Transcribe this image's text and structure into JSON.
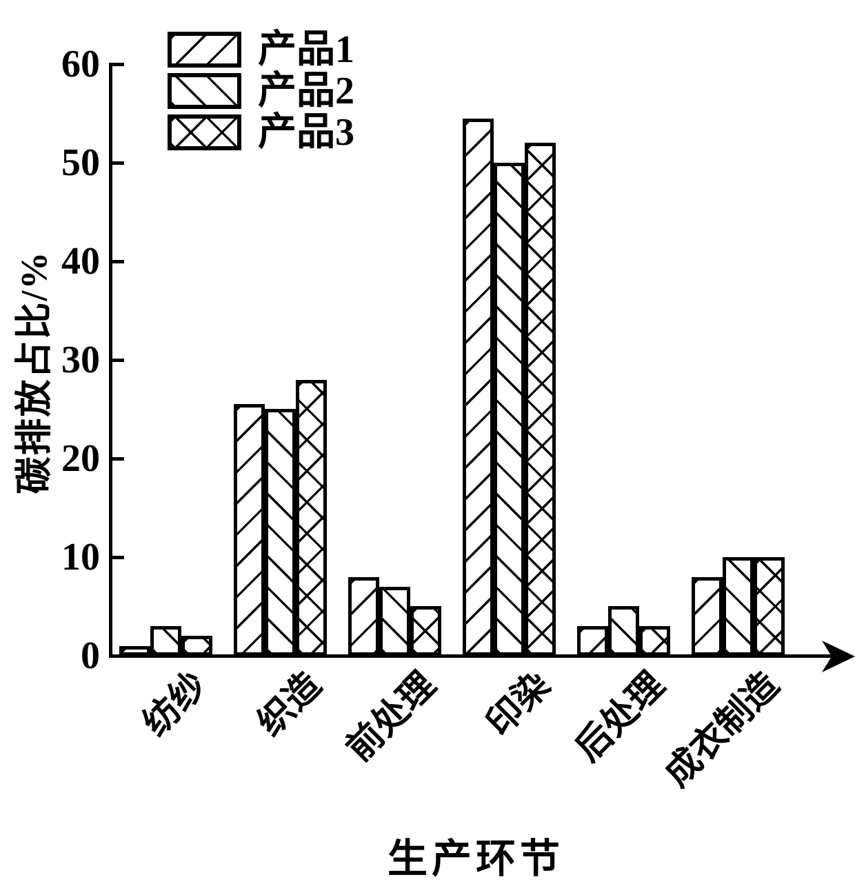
{
  "chart_data": {
    "type": "bar",
    "title": "",
    "xlabel": "生产环节",
    "ylabel": "碳排放占比/%",
    "categories": [
      "纺纱",
      "织造",
      "前处理",
      "印染",
      "后处理",
      "成衣制造"
    ],
    "series": [
      {
        "name": "产品1",
        "hatch": "diag-forward",
        "values": [
          1,
          25.5,
          8,
          54.5,
          3,
          8
        ]
      },
      {
        "name": "产品2",
        "hatch": "diag-backward",
        "values": [
          3,
          25,
          7,
          50,
          5,
          10
        ]
      },
      {
        "name": "产品3",
        "hatch": "crosshatch",
        "values": [
          2,
          28,
          5,
          52,
          3,
          10
        ]
      }
    ],
    "ylim": [
      0,
      60
    ],
    "yticks": [
      0,
      10,
      20,
      30,
      40,
      50,
      60
    ],
    "legend_position": "top-left",
    "grid": false,
    "bar_style": "white fill with black hatch pattern, black outline",
    "colors": {
      "foreground": "#000000",
      "background": "#ffffff"
    }
  }
}
